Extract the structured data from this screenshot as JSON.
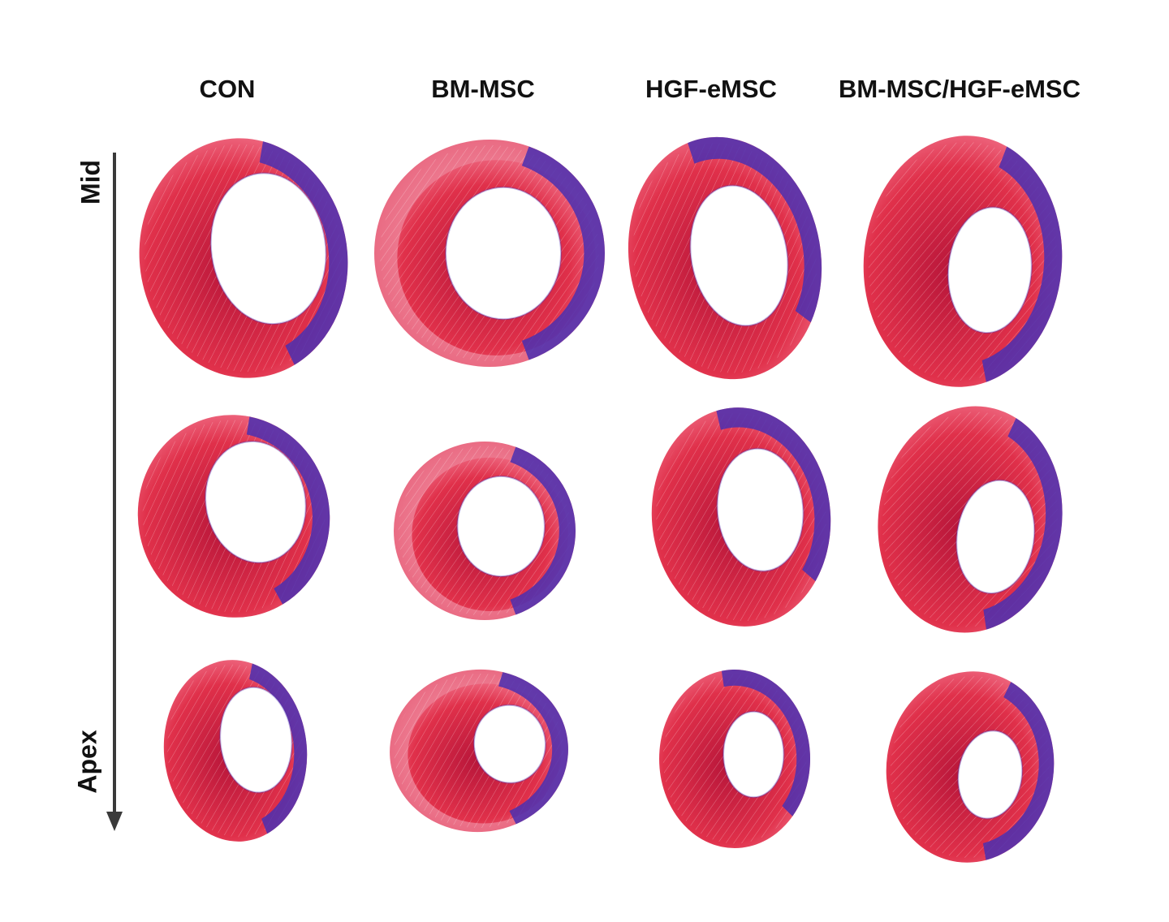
{
  "columns": [
    {
      "key": "con",
      "label": "CON"
    },
    {
      "key": "bm",
      "label": "BM-MSC"
    },
    {
      "key": "hgf",
      "label": "HGF-eMSC"
    },
    {
      "key": "combo",
      "label": "BM-MSC/HGF-eMSC"
    }
  ],
  "axis": {
    "top_label": "Mid",
    "bottom_label": "Apex"
  },
  "colors": {
    "muscle": "#e0304a",
    "muscle_dark": "#b8163a",
    "muscle_pale": "#f4a6b4",
    "fibrosis": "#4a2fb0",
    "arrow": "#3a3a3a"
  }
}
